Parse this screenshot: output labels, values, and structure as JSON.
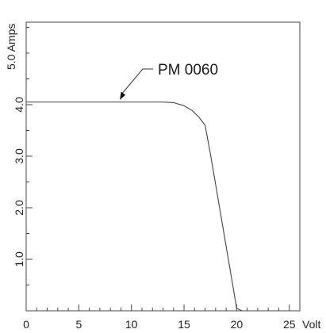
{
  "chart_data": {
    "type": "line",
    "title": "",
    "xlabel": "Volt",
    "ylabel": "5.0 Amps",
    "xlim": [
      0,
      26
    ],
    "ylim": [
      0,
      5.6
    ],
    "grid": false,
    "x_ticks": [
      0,
      5,
      10,
      15,
      20,
      25
    ],
    "x_tick_labels": [
      "0",
      "5",
      "10",
      "15",
      "20",
      "25"
    ],
    "x_minor_step": 1,
    "y_ticks": [
      1.0,
      2.0,
      3.0,
      4.0
    ],
    "y_tick_labels": [
      "1.0",
      "2.0",
      "3.0",
      "4.0"
    ],
    "y_minor_step": 0.5,
    "series": [
      {
        "name": "PM 0060",
        "color": "#444444",
        "x": [
          0,
          2,
          4,
          6,
          8,
          10,
          12,
          13,
          14,
          15,
          15.8,
          16.4,
          17.0,
          17.5,
          18.0,
          18.5,
          19.0,
          19.5,
          20.0,
          20.5
        ],
        "y": [
          4.05,
          4.05,
          4.05,
          4.05,
          4.05,
          4.05,
          4.05,
          4.05,
          4.04,
          3.98,
          3.88,
          3.76,
          3.6,
          3.05,
          2.45,
          1.85,
          1.25,
          0.65,
          0.05,
          0.0
        ]
      }
    ],
    "annotations": [
      {
        "text": "PM 0060",
        "target_x": 8.6,
        "target_y": 4.05
      }
    ]
  }
}
